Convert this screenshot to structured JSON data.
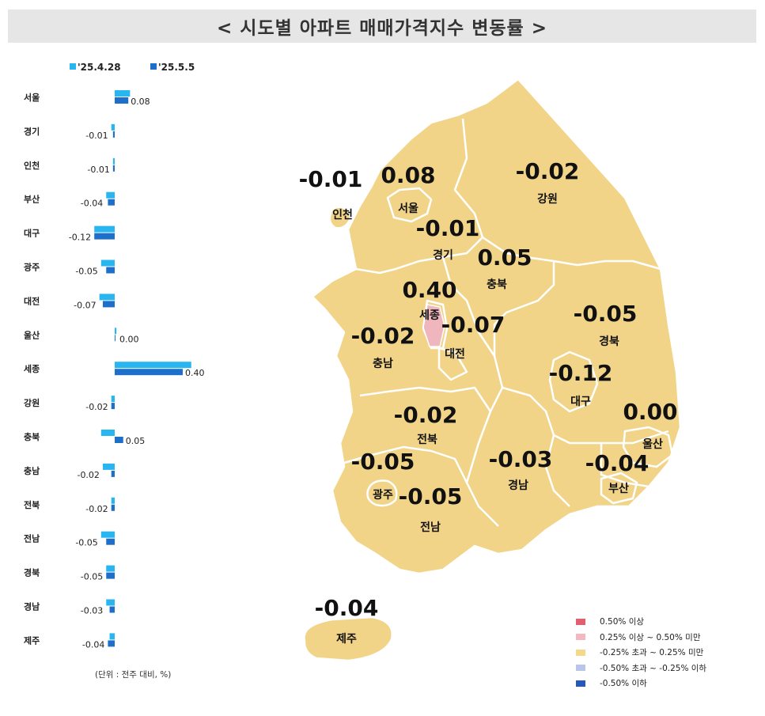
{
  "title": "< 시도별 아파트 매매가격지수 변동률 >",
  "chart_data": {
    "type": "bar",
    "orientation": "horizontal",
    "categories": [
      "서울",
      "경기",
      "인천",
      "부산",
      "대구",
      "광주",
      "대전",
      "울산",
      "세종",
      "강원",
      "충북",
      "충남",
      "전북",
      "전남",
      "경북",
      "경남",
      "제주"
    ],
    "series": [
      {
        "name": "'25.4.28",
        "color": "#29b6f0",
        "values": [
          0.09,
          -0.02,
          -0.01,
          -0.05,
          -0.12,
          -0.08,
          -0.09,
          0.01,
          0.45,
          -0.02,
          -0.08,
          -0.07,
          -0.02,
          -0.08,
          -0.05,
          -0.05,
          -0.03
        ]
      },
      {
        "name": "'25.5.5",
        "color": "#1d6fc9",
        "values": [
          0.08,
          -0.01,
          -0.01,
          -0.04,
          -0.12,
          -0.05,
          -0.07,
          0.0,
          0.4,
          -0.02,
          0.05,
          -0.02,
          -0.02,
          -0.05,
          -0.05,
          -0.03,
          -0.04
        ]
      }
    ],
    "data_labels": [
      "0.08",
      "-0.01",
      "-0.01",
      "-0.04",
      "-0.12",
      "-0.05",
      "-0.07",
      "0.00",
      "0.40",
      "-0.02",
      "0.05",
      "-0.02",
      "-0.02",
      "-0.05",
      "-0.05",
      "-0.03",
      "-0.04"
    ],
    "unit_note": "(단위 : 전주 대비, %)",
    "grid": false,
    "legend_position": "top"
  },
  "map": {
    "regions": [
      {
        "name": "인천",
        "value": "-0.01"
      },
      {
        "name": "서울",
        "value": "0.08"
      },
      {
        "name": "강원",
        "value": "-0.02"
      },
      {
        "name": "경기",
        "value": "-0.01"
      },
      {
        "name": "충북",
        "value": "0.05"
      },
      {
        "name": "세종",
        "value": "0.40"
      },
      {
        "name": "대전",
        "value": "-0.07"
      },
      {
        "name": "충남",
        "value": "-0.02"
      },
      {
        "name": "경북",
        "value": "-0.05"
      },
      {
        "name": "대구",
        "value": "-0.12"
      },
      {
        "name": "울산",
        "value": "0.00"
      },
      {
        "name": "전북",
        "value": "-0.02"
      },
      {
        "name": "광주",
        "value": "-0.05"
      },
      {
        "name": "경남",
        "value": "-0.03"
      },
      {
        "name": "부산",
        "value": "-0.04"
      },
      {
        "name": "전남",
        "value": "-0.05"
      },
      {
        "name": "제주",
        "value": "-0.04"
      }
    ],
    "legend": [
      {
        "label": "0.50% 이상",
        "color": "#e06070"
      },
      {
        "label": "0.25% 이상 ~ 0.50% 미만",
        "color": "#f3b8c0"
      },
      {
        "label": "-0.25% 초과 ~ 0.25% 미만",
        "color": "#f4d98a"
      },
      {
        "label": "-0.50% 초과 ~ -0.25% 이하",
        "color": "#b9c6ea"
      },
      {
        "label": "-0.50% 이하",
        "color": "#2a58b8"
      }
    ],
    "land_color": "#f1d487",
    "sejong_color": "#efb6be"
  }
}
